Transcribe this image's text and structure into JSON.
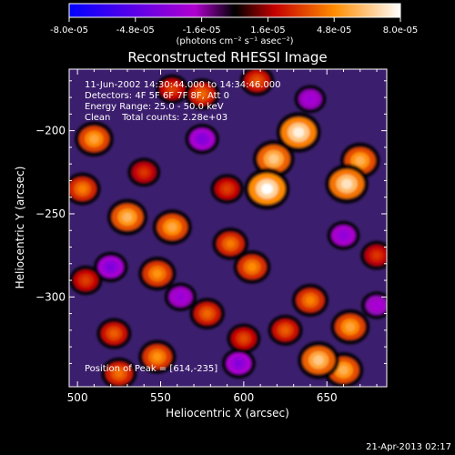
{
  "chart_data": {
    "type": "heatmap",
    "title": "Reconstructed RHESSI Image",
    "xlabel": "Heliocentric X (arcsec)",
    "ylabel": "Heliocentric Y (arcsec)",
    "xlim": [
      495,
      686
    ],
    "ylim": [
      -354,
      -163
    ],
    "x_ticks": [
      500,
      550,
      600,
      650
    ],
    "y_ticks": [
      -200,
      -250,
      -300
    ],
    "colorbar": {
      "range": [
        -8e-05,
        8e-05
      ],
      "tick_labels": [
        "-8.0e-05",
        "-4.8e-05",
        "-1.6e-05",
        "1.6e-05",
        "4.8e-05",
        "8.0e-05"
      ],
      "unit_line": "(photons cm⁻² s⁻¹ asec⁻²)"
    },
    "annotations": [
      "11-Jun-2002 14:30:44.000 to 14:34:46.000",
      "Detectors: 4F 5F 6F 7F 8F, Att 0",
      "Energy Range: 25.0 - 50.0 keV",
      "Clean    Total counts: 2.28e+03"
    ],
    "peak_label": "Position of Peak = [614,-235]",
    "peak": [
      614,
      -235
    ],
    "sources": [
      {
        "x": 633,
        "y": -201,
        "value": 7.6e-05
      },
      {
        "x": 614,
        "y": -235,
        "value": 8e-05
      },
      {
        "x": 618,
        "y": -217,
        "value": 6.5e-05
      },
      {
        "x": 662,
        "y": -232,
        "value": 7.2e-05
      },
      {
        "x": 670,
        "y": -218,
        "value": 5.8e-05
      },
      {
        "x": 510,
        "y": -205,
        "value": 5.5e-05
      },
      {
        "x": 503,
        "y": -235,
        "value": 4.5e-05
      },
      {
        "x": 530,
        "y": -252,
        "value": 6e-05
      },
      {
        "x": 557,
        "y": -258,
        "value": 5.6e-05
      },
      {
        "x": 548,
        "y": -286,
        "value": 5e-05
      },
      {
        "x": 592,
        "y": -268,
        "value": 4.4e-05
      },
      {
        "x": 605,
        "y": -282,
        "value": 4.8e-05
      },
      {
        "x": 578,
        "y": -310,
        "value": 4e-05
      },
      {
        "x": 640,
        "y": -302,
        "value": 4.6e-05
      },
      {
        "x": 664,
        "y": -318,
        "value": 5.5e-05
      },
      {
        "x": 645,
        "y": -338,
        "value": 6.5e-05
      },
      {
        "x": 660,
        "y": -344,
        "value": 5.8e-05
      },
      {
        "x": 548,
        "y": -336,
        "value": 5e-05
      },
      {
        "x": 522,
        "y": -322,
        "value": 3.8e-05
      },
      {
        "x": 525,
        "y": -346,
        "value": 4.2e-05
      },
      {
        "x": 575,
        "y": -178,
        "value": 4e-05
      },
      {
        "x": 557,
        "y": -175,
        "value": 3.2e-05
      },
      {
        "x": 608,
        "y": -170,
        "value": 3.6e-05
      },
      {
        "x": 540,
        "y": -225,
        "value": 3e-05
      },
      {
        "x": 590,
        "y": -235,
        "value": 3.2e-05
      },
      {
        "x": 600,
        "y": -325,
        "value": 3.4e-05
      },
      {
        "x": 625,
        "y": -320,
        "value": 3.8e-05
      },
      {
        "x": 680,
        "y": -275,
        "value": 3e-05
      },
      {
        "x": 505,
        "y": -290,
        "value": 3.2e-05
      },
      {
        "x": 575,
        "y": -205,
        "value": -3.5e-05
      },
      {
        "x": 520,
        "y": -282,
        "value": -3.6e-05
      },
      {
        "x": 597,
        "y": -340,
        "value": -3.4e-05
      },
      {
        "x": 660,
        "y": -263,
        "value": -3e-05
      },
      {
        "x": 562,
        "y": -300,
        "value": -2.8e-05
      },
      {
        "x": 640,
        "y": -181,
        "value": -2.6e-05
      },
      {
        "x": 680,
        "y": -305,
        "value": -2.4e-05
      }
    ]
  },
  "footer": {
    "timestamp": "21-Apr-2013 02:17"
  }
}
